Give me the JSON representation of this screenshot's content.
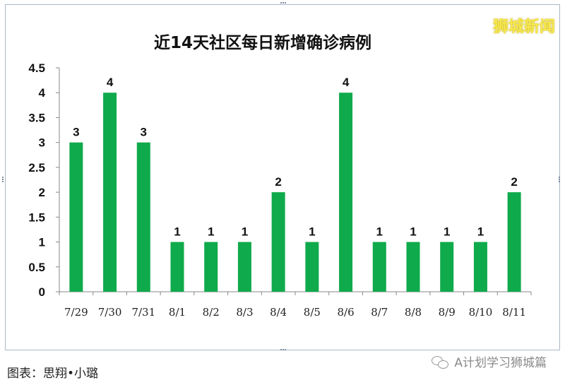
{
  "chart_data": {
    "type": "bar",
    "title": "近14天社区每日新增确诊病例",
    "categories": [
      "7/29",
      "7/30",
      "7/31",
      "8/1",
      "8/2",
      "8/3",
      "8/4",
      "8/5",
      "8/6",
      "8/7",
      "8/8",
      "8/9",
      "8/10",
      "8/11"
    ],
    "values": [
      3,
      4,
      3,
      1,
      1,
      1,
      2,
      1,
      4,
      1,
      1,
      1,
      1,
      2
    ],
    "value_labels": [
      "3",
      "4",
      "3",
      "1",
      "1",
      "1",
      "2",
      "1",
      "4",
      "1",
      "1",
      "1",
      "1",
      "2"
    ],
    "ylim": [
      0,
      4.5
    ],
    "yticks": [
      "0",
      "0.5",
      "1",
      "1.5",
      "2",
      "2.5",
      "3",
      "3.5",
      "4",
      "4.5"
    ],
    "grid": false,
    "bar_color": "#0faa4b"
  },
  "brand": "狮城新闻",
  "caption": "图表：思翔•小璐",
  "watermark": "A计划学习狮城篇",
  "icons": {
    "watermark": "wechat-icon"
  }
}
